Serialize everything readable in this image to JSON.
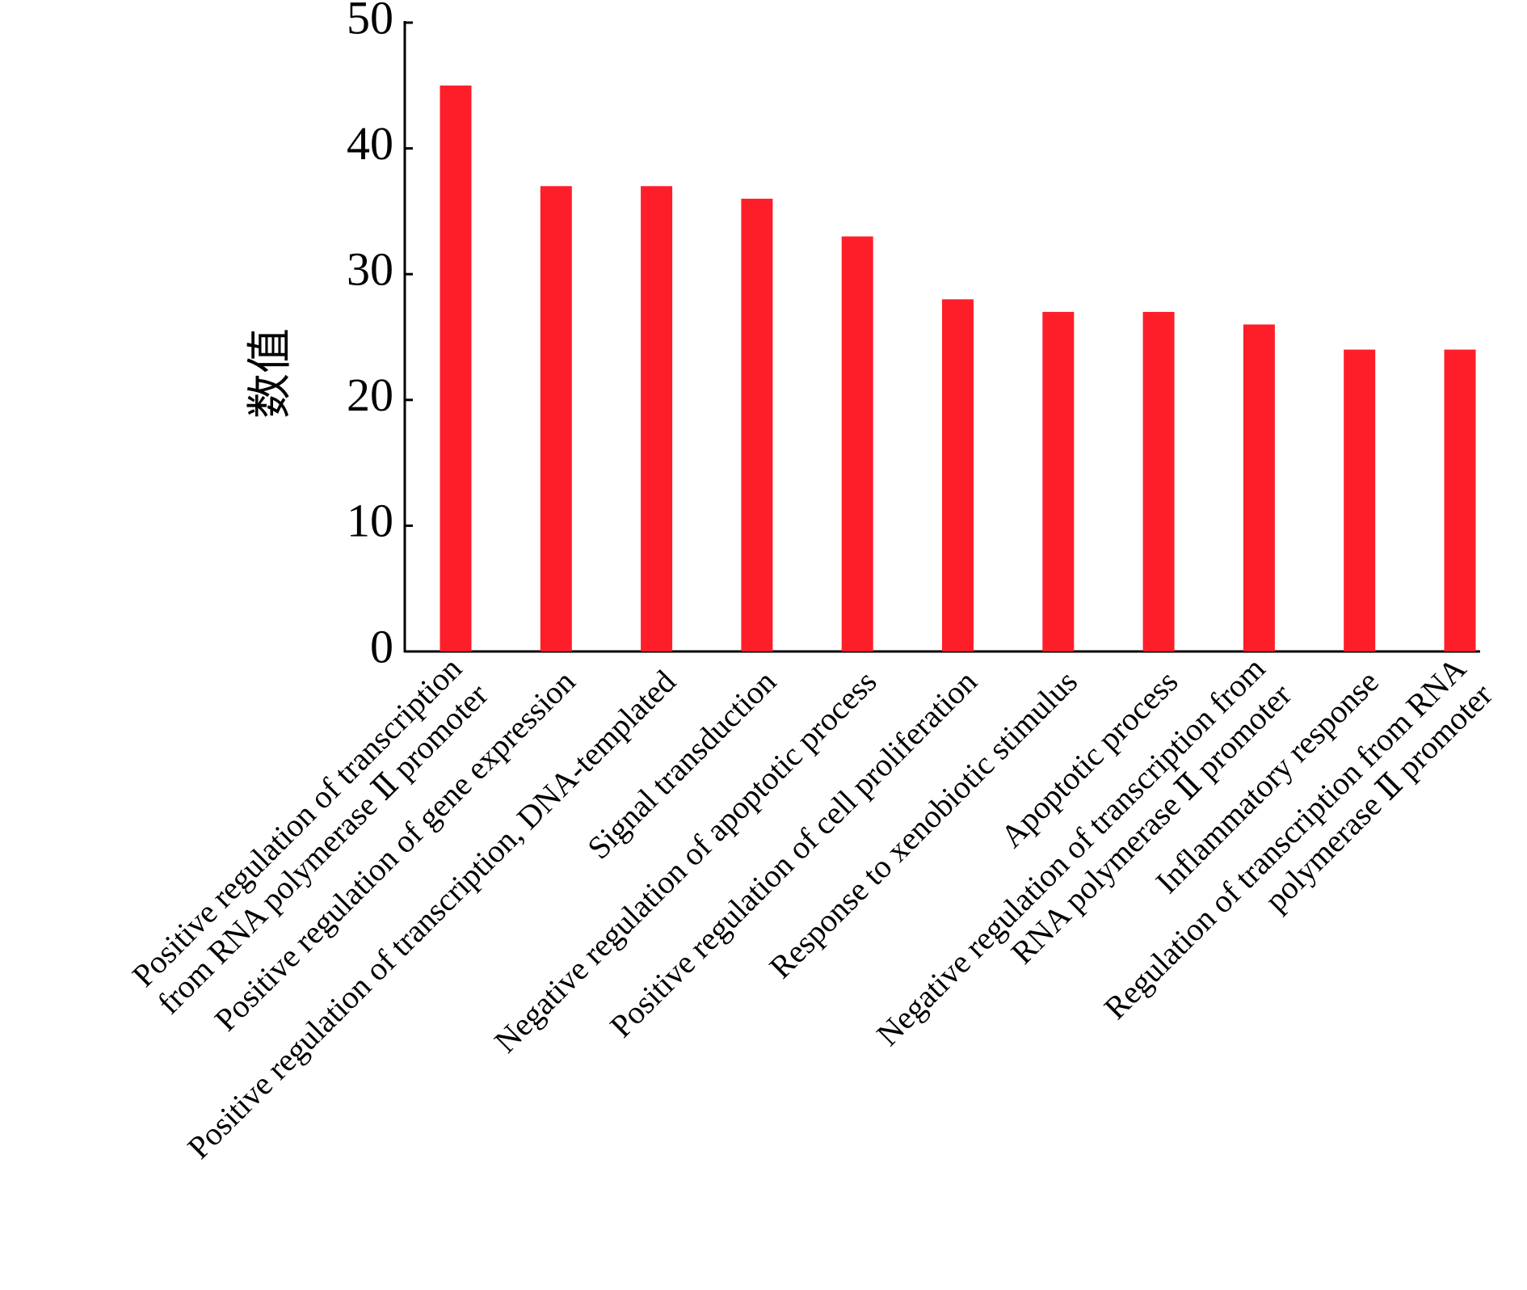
{
  "chart_data": {
    "type": "bar",
    "y_label": "数值",
    "categories": [
      [
        "Positive regulation of transcription",
        "from RNA polymerase Ⅱ promoter"
      ],
      [
        "Positive regulation of gene expression"
      ],
      [
        "Positive regulation of transcription, DNA-templated"
      ],
      [
        "Signal transduction"
      ],
      [
        "Negative regulation of apoptotic process"
      ],
      [
        "Positive regulation of cell proliferation"
      ],
      [
        "Response to xenobiotic stimulus"
      ],
      [
        "Apoptotic process"
      ],
      [
        "Negative regulation of transcription from",
        "RNA polymerase Ⅱ promoter"
      ],
      [
        "Inflammatory response"
      ],
      [
        "Regulation of transcription from RNA",
        "polymerase Ⅱ promoter"
      ]
    ],
    "values": [
      45,
      37,
      37,
      36,
      33,
      28,
      27,
      27,
      26,
      24,
      24
    ],
    "color": "#fe1e2a",
    "ylim": [
      0,
      50
    ],
    "yticks": [
      0,
      10,
      20,
      30,
      40,
      50
    ]
  }
}
